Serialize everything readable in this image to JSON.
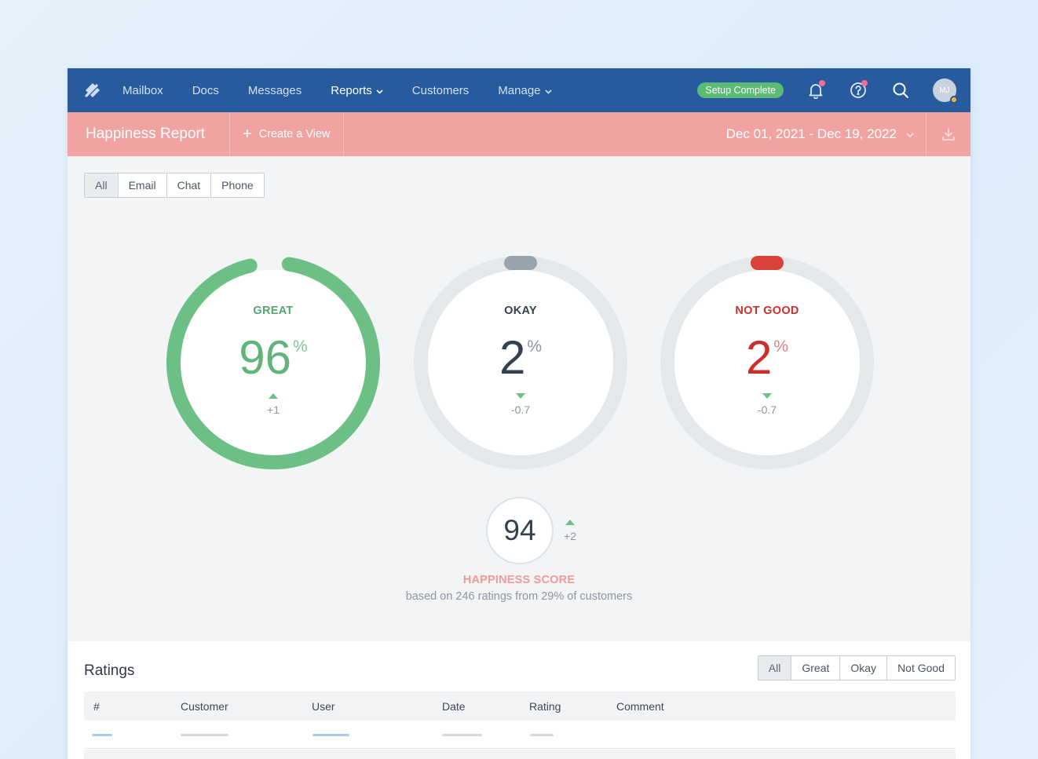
{
  "nav": {
    "items": [
      {
        "label": "Mailbox",
        "name": "nav-mailbox",
        "dropdown": false,
        "active": false
      },
      {
        "label": "Docs",
        "name": "nav-docs",
        "dropdown": false,
        "active": false
      },
      {
        "label": "Messages",
        "name": "nav-messages",
        "dropdown": false,
        "active": false
      },
      {
        "label": "Reports",
        "name": "nav-reports",
        "dropdown": true,
        "active": true
      },
      {
        "label": "Customers",
        "name": "nav-customers",
        "dropdown": false,
        "active": false
      },
      {
        "label": "Manage",
        "name": "nav-manage",
        "dropdown": true,
        "active": false
      }
    ],
    "setup_badge": "Setup Complete",
    "avatar_initials": "MJ",
    "colors": {
      "nav_bg": "#285a9e",
      "badge": "#5cba75",
      "notif_dot": "#f06c9b"
    }
  },
  "header": {
    "title": "Happiness Report",
    "create_view": "Create a View",
    "date_range": "Dec 01, 2021 - Dec 19, 2022",
    "color": "#f0a3a1"
  },
  "channels": {
    "options": [
      "All",
      "Email",
      "Chat",
      "Phone"
    ],
    "selected": "All"
  },
  "gauges": [
    {
      "key": "great",
      "label": "GREAT",
      "value": "96",
      "unit": "%",
      "delta": "+1",
      "trend": "up",
      "fraction": 0.96,
      "color": "#6cbf85",
      "label_color": "#52a86c"
    },
    {
      "key": "okay",
      "label": "OKAY",
      "value": "2",
      "unit": "%",
      "delta": "-0.7",
      "trend": "down",
      "fraction": 0.02,
      "color": "#9aa4af",
      "label_color": "#33404f"
    },
    {
      "key": "not-good",
      "label": "NOT GOOD",
      "value": "2",
      "unit": "%",
      "delta": "-0.7",
      "trend": "down",
      "fraction": 0.02,
      "color": "#d9413a",
      "label_color": "#c9302c"
    }
  ],
  "happiness": {
    "score": "94",
    "delta": "+2",
    "title": "HAPPINESS SCORE",
    "subtitle": "based on 246 ratings from 29% of customers"
  },
  "ratings": {
    "title": "Ratings",
    "filters": [
      "All",
      "Great",
      "Okay",
      "Not Good"
    ],
    "selected_filter": "All",
    "columns": [
      "#",
      "Customer",
      "User",
      "Date",
      "Rating",
      "Comment"
    ]
  }
}
